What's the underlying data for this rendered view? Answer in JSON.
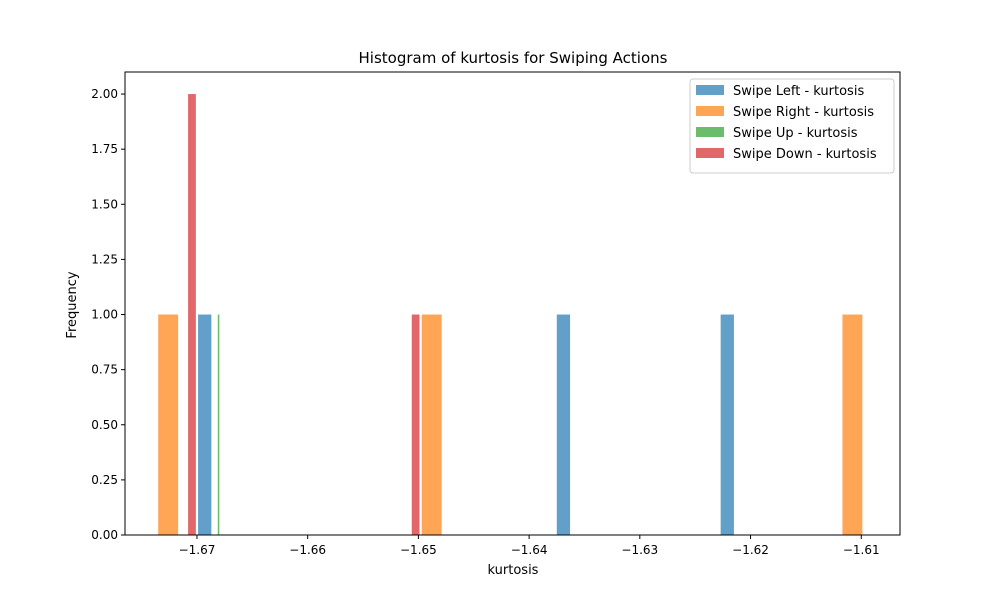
{
  "chart_data": {
    "type": "bar",
    "title": "Histogram of kurtosis for Swiping Actions",
    "xlabel": "kurtosis",
    "ylabel": "Frequency",
    "xlim": [
      -1.6765,
      -1.6065
    ],
    "ylim": [
      0,
      2.1
    ],
    "xticks": [
      -1.67,
      -1.66,
      -1.65,
      -1.64,
      -1.63,
      -1.62,
      -1.61
    ],
    "xtick_labels": [
      "−1.67",
      "−1.66",
      "−1.65",
      "−1.64",
      "−1.63",
      "−1.62",
      "−1.61"
    ],
    "yticks": [
      0,
      0.25,
      0.5,
      0.75,
      1.0,
      1.25,
      1.5,
      1.75,
      2.0
    ],
    "ytick_labels": [
      "0.00",
      "0.25",
      "0.50",
      "0.75",
      "1.00",
      "1.25",
      "1.50",
      "1.75",
      "2.00"
    ],
    "legend_position": "top-right",
    "grid": false,
    "series": [
      {
        "name": "Swipe Left - kurtosis",
        "color": "#1f77b4",
        "bars": [
          {
            "x0": -1.6699,
            "x1": -1.6687,
            "value": 1
          },
          {
            "x0": -1.6375,
            "x1": -1.6363,
            "value": 1
          },
          {
            "x0": -1.6227,
            "x1": -1.6215,
            "value": 1
          }
        ]
      },
      {
        "name": "Swipe Right - kurtosis",
        "color": "#ff7f0e",
        "bars": [
          {
            "x0": -1.6735,
            "x1": -1.6717,
            "value": 1
          },
          {
            "x0": -1.6497,
            "x1": -1.6479,
            "value": 1
          },
          {
            "x0": -1.6117,
            "x1": -1.6099,
            "value": 1
          }
        ]
      },
      {
        "name": "Swipe Up - kurtosis",
        "color": "#2ca02c",
        "bars": [
          {
            "x0": -1.66812,
            "x1": -1.66798,
            "value": 1
          }
        ]
      },
      {
        "name": "Swipe Down - kurtosis",
        "color": "#d62728",
        "bars": [
          {
            "x0": -1.6708,
            "x1": -1.6701,
            "value": 2
          },
          {
            "x0": -1.6506,
            "x1": -1.6499,
            "value": 1
          }
        ]
      }
    ]
  }
}
